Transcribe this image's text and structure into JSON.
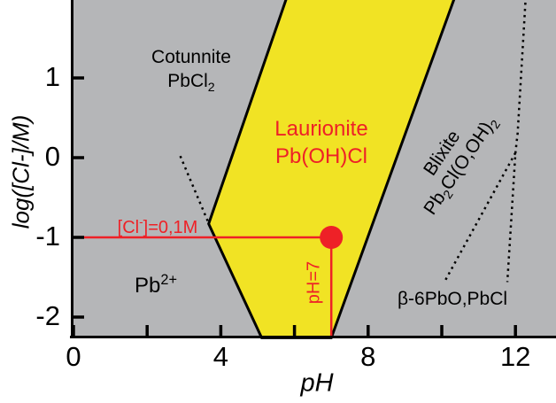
{
  "chart_data": {
    "type": "phase-diagram",
    "title": "",
    "xlabel": "pH",
    "ylabel": "log([Cl-]/M)",
    "xlim": [
      0,
      13.1
    ],
    "ylim": [
      -2.26,
      1.98
    ],
    "x_ticks_major": [
      0,
      4,
      8,
      12
    ],
    "x_ticks_minor": [
      2,
      6,
      10
    ],
    "y_ticks_major": [
      1,
      0,
      -1,
      -2
    ],
    "grid": false,
    "regions": [
      {
        "name": "Cotunnite",
        "formula": "PbCl2",
        "fill": "gray"
      },
      {
        "name": "Laurionite",
        "formula": "Pb(OH)Cl",
        "fill": "yellow"
      },
      {
        "name": "Blixite",
        "formula": "Pb2Cl(O,OH)2",
        "fill": "gray"
      },
      {
        "name": "Pb2+",
        "formula": "Pb2+",
        "fill": "gray"
      },
      {
        "name": "beta-6PbO,PbCl",
        "formula": "β-6PbO,PbCl",
        "fill": "gray"
      }
    ],
    "laurionite_polygon_ph_log": [
      [
        5.8,
        1.98
      ],
      [
        10.36,
        1.98
      ],
      [
        7.0,
        -2.26
      ],
      [
        5.11,
        -2.26
      ],
      [
        3.67,
        -0.83
      ]
    ],
    "dotted_boundaries_ph_log": [
      [
        [
          2.9,
          0.02
        ],
        [
          3.65,
          -0.8
        ]
      ],
      [
        [
          12.28,
          1.98
        ],
        [
          12.06,
          0.31
        ],
        [
          12.0,
          0.06
        ],
        [
          11.78,
          -1.56
        ]
      ],
      [
        [
          12.0,
          0.06
        ],
        [
          10.07,
          -1.56
        ]
      ]
    ],
    "annotations": {
      "cl_line": {
        "log": -1,
        "ph_from": 0,
        "ph_to": 7,
        "label": "[Cl-]=0,1M"
      },
      "ph_line": {
        "ph": 7,
        "log_from": -1,
        "log_to": -2.26,
        "label": "pH=7"
      },
      "marker_point": {
        "ph": 7,
        "log": -1
      }
    },
    "colors": {
      "background_gray": "#b5b6b8",
      "laurionite_yellow": "#f1e324",
      "annotation_red": "#ee2127",
      "boundary_black": "#000000"
    }
  },
  "labels": {
    "cotunnite": {
      "line1": "Cotunnite",
      "f_main": "PbCl",
      "f_sub": "2"
    },
    "laurionite": {
      "line1": "Laurionite",
      "line2": "Pb(OH)Cl"
    },
    "blixite": {
      "line1": "Blixite",
      "f_p1": "Pb",
      "f_s1": "2",
      "f_p2": "Cl(O,OH)",
      "f_s2": "2"
    },
    "pb2": {
      "main": "Pb",
      "sup": "2+"
    },
    "beta": {
      "text": "β-6PbO,PbCl"
    },
    "cl_annotation": {
      "p1": "[Cl",
      "sup": "-",
      "p2": "]=0,1M"
    },
    "ph_annotation": {
      "text": "pH=7"
    },
    "axis": {
      "x": "pH",
      "y": "log([Cl-]/M)"
    }
  }
}
